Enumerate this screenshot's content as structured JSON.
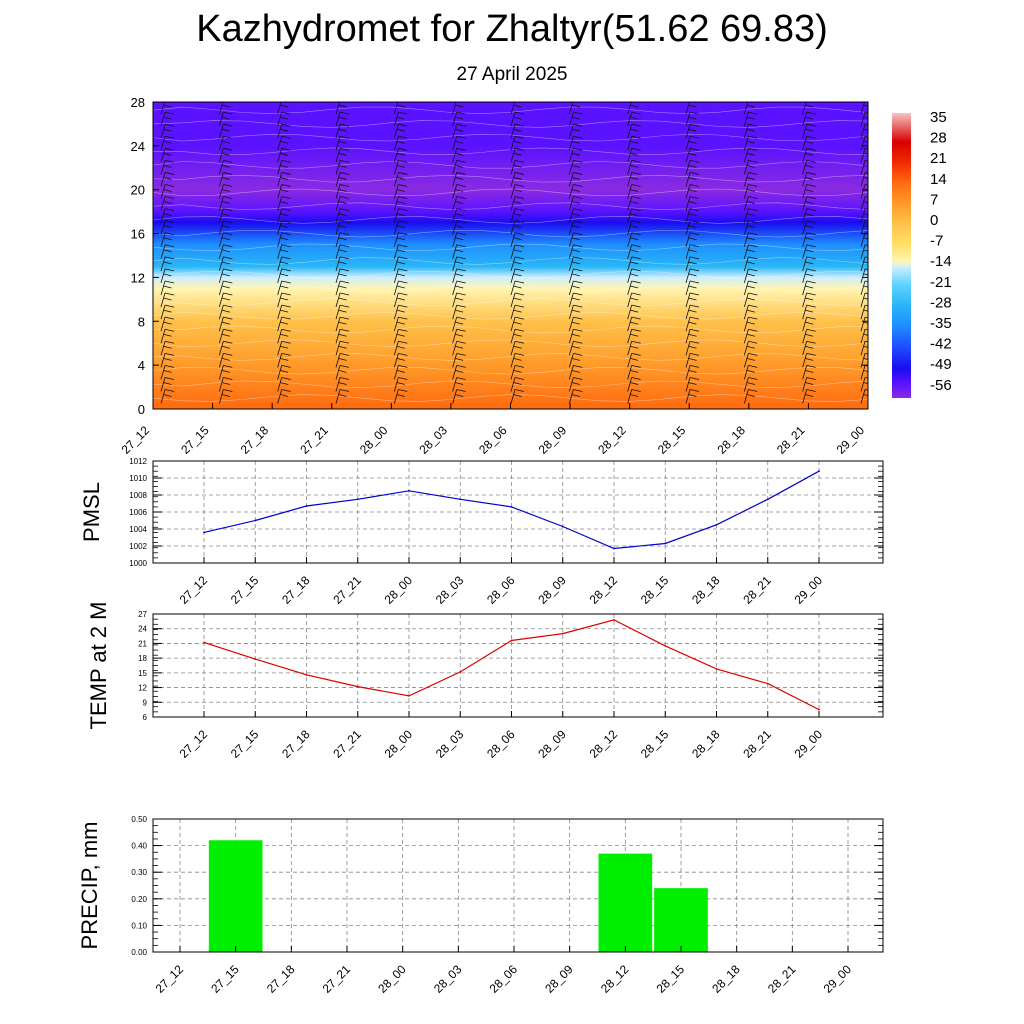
{
  "title": "Kazhydromet for Zhaltyr(51.62 69.83)",
  "subtitle": "27 April 2025",
  "colors": {
    "pmsl_line": "#0000cc",
    "temp_line": "#dd0000",
    "precip_bar": "#00ee00",
    "grid": "#888888"
  },
  "chart_data": [
    {
      "type": "heatmap",
      "name": "upper-air-temperature-wind",
      "x_ticks": [
        "27_12",
        "27_15",
        "27_18",
        "27_21",
        "28_00",
        "28_03",
        "28_06",
        "28_09",
        "28_12",
        "28_15",
        "28_18",
        "28_21",
        "29_00"
      ],
      "y_ticks": [
        "0",
        "4",
        "8",
        "12",
        "16",
        "20",
        "24",
        "28"
      ],
      "ylim": [
        0,
        28
      ],
      "colorbar_labels": [
        "35",
        "28",
        "21",
        "14",
        "7",
        "0",
        "-7",
        "-14",
        "-21",
        "-28",
        "-35",
        "-42",
        "-49",
        "-56"
      ],
      "colorbar_range": [
        -60,
        38
      ],
      "temperature_profile": [
        {
          "level": 0,
          "value": 20
        },
        {
          "level": 4,
          "value": 12
        },
        {
          "level": 8,
          "value": 3
        },
        {
          "level": 11,
          "value": -8
        },
        {
          "level": 12,
          "value": -14
        },
        {
          "level": 13,
          "value": -24
        },
        {
          "level": 15,
          "value": -32
        },
        {
          "level": 17,
          "value": -44
        },
        {
          "level": 18,
          "value": -53
        },
        {
          "level": 20,
          "value": -55
        },
        {
          "level": 24,
          "value": -52
        },
        {
          "level": 28,
          "value": -50
        }
      ],
      "wind_barbs": "wind barbs shown at each time step"
    },
    {
      "type": "line",
      "ylabel": "PMSL",
      "categories": [
        "27_12",
        "27_15",
        "27_18",
        "27_21",
        "28_00",
        "28_03",
        "28_06",
        "28_09",
        "28_12",
        "28_15",
        "28_18",
        "28_21",
        "29_00"
      ],
      "values": [
        1003.6,
        1005.0,
        1006.7,
        1007.5,
        1008.5,
        1007.5,
        1006.6,
        1004.3,
        1001.7,
        1002.3,
        1004.5,
        1007.5,
        1010.8
      ],
      "ylim": [
        1000,
        1012
      ],
      "y_ticks": [
        "1000",
        "1002",
        "1004",
        "1006",
        "1008",
        "1010",
        "1012"
      ],
      "grid": true
    },
    {
      "type": "line",
      "ylabel": "TEMP at 2 M",
      "categories": [
        "27_12",
        "27_15",
        "27_18",
        "27_21",
        "28_00",
        "28_03",
        "28_06",
        "28_09",
        "28_12",
        "28_15",
        "28_18",
        "28_21",
        "29_00"
      ],
      "values": [
        21.2,
        17.8,
        14.6,
        12.2,
        10.3,
        15.2,
        21.6,
        23.0,
        25.8,
        20.5,
        15.8,
        12.8,
        7.5
      ],
      "ylim": [
        6,
        27
      ],
      "y_ticks": [
        "6",
        "9",
        "12",
        "15",
        "18",
        "21",
        "24",
        "27"
      ],
      "grid": true
    },
    {
      "type": "bar",
      "ylabel": "PRECIP, mm",
      "categories": [
        "27_12",
        "27_15",
        "27_18",
        "27_21",
        "28_00",
        "28_03",
        "28_06",
        "28_09",
        "28_12",
        "28_15",
        "28_18",
        "28_21",
        "29_00"
      ],
      "values": [
        0,
        0.42,
        0,
        0,
        0,
        0,
        0,
        0,
        0.37,
        0.24,
        0,
        0,
        0
      ],
      "ylim": [
        0,
        0.5
      ],
      "y_ticks": [
        "0.00",
        "0.10",
        "0.20",
        "0.30",
        "0.40",
        "0.50"
      ],
      "grid": true
    }
  ]
}
